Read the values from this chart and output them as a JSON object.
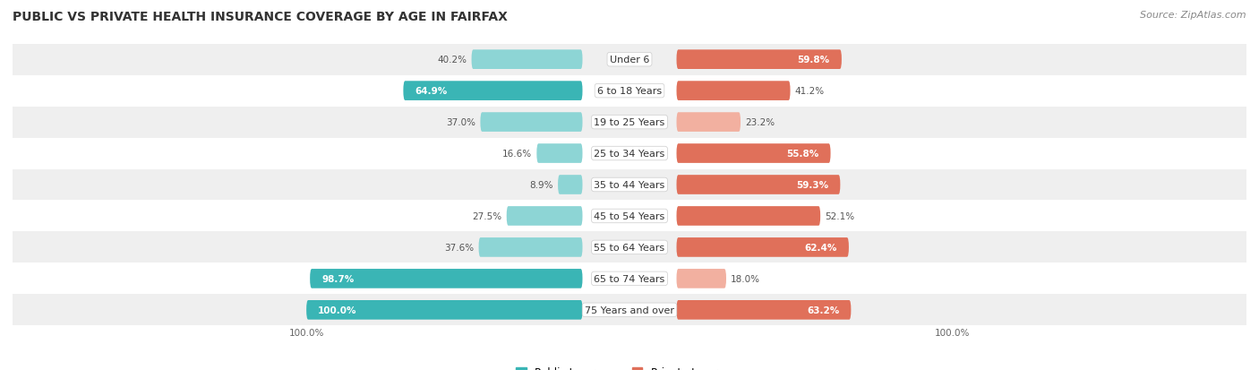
{
  "title": "PUBLIC VS PRIVATE HEALTH INSURANCE COVERAGE BY AGE IN FAIRFAX",
  "source": "Source: ZipAtlas.com",
  "categories": [
    "Under 6",
    "6 to 18 Years",
    "19 to 25 Years",
    "25 to 34 Years",
    "35 to 44 Years",
    "45 to 54 Years",
    "55 to 64 Years",
    "65 to 74 Years",
    "75 Years and over"
  ],
  "public_values": [
    40.2,
    64.9,
    37.0,
    16.6,
    8.9,
    27.5,
    37.6,
    98.7,
    100.0
  ],
  "private_values": [
    59.8,
    41.2,
    23.2,
    55.8,
    59.3,
    52.1,
    62.4,
    18.0,
    63.2
  ],
  "public_color_dark": "#3ab5b5",
  "public_color_light": "#8dd5d5",
  "private_color_dark": "#e0705a",
  "private_color_light": "#f2b0a0",
  "row_bg_colors": [
    "#efefef",
    "#ffffff",
    "#efefef",
    "#ffffff",
    "#efefef",
    "#ffffff",
    "#efefef",
    "#ffffff",
    "#efefef"
  ],
  "title_fontsize": 10,
  "label_fontsize": 8,
  "value_fontsize": 7.5,
  "legend_fontsize": 8.5,
  "source_fontsize": 8
}
